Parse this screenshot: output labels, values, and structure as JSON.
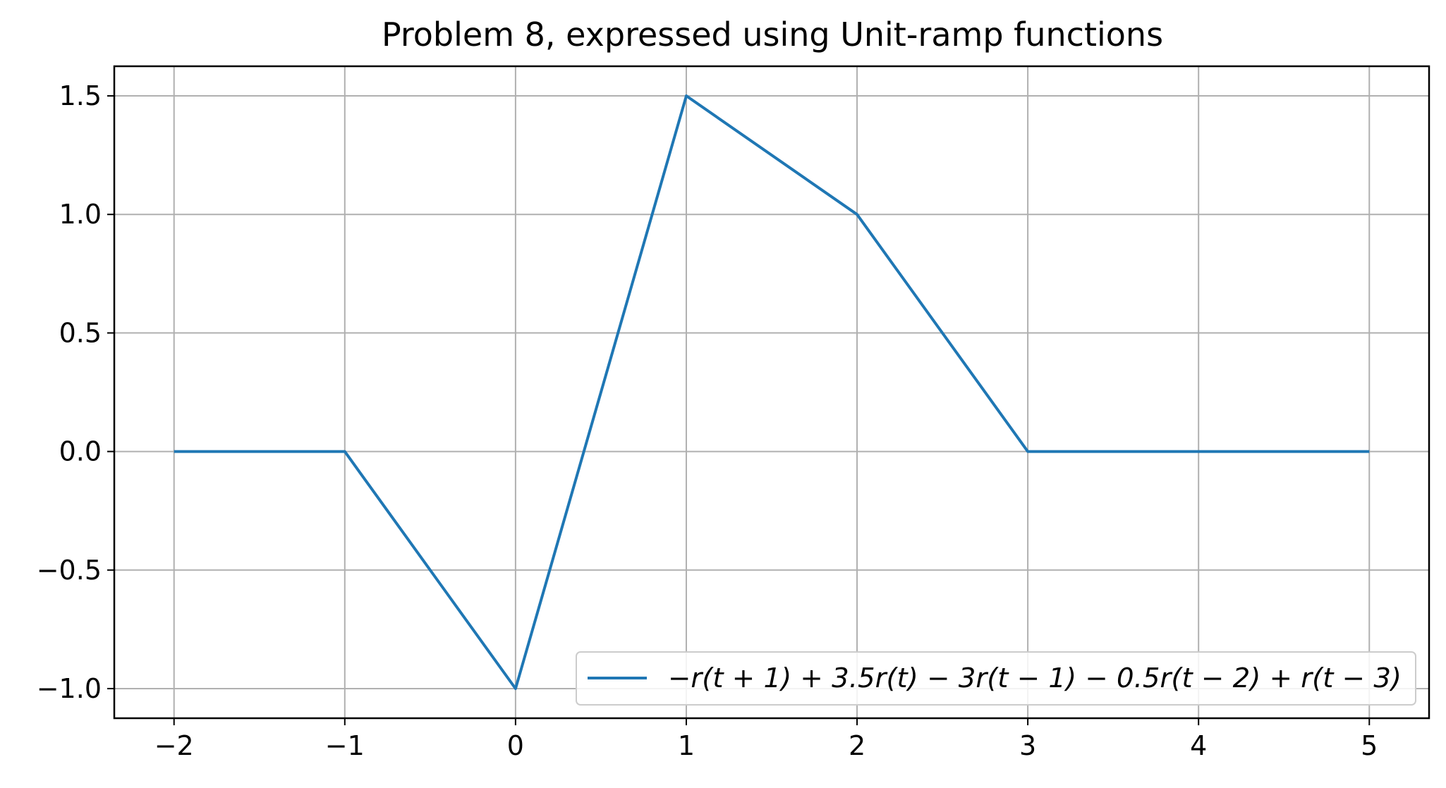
{
  "chart_data": {
    "type": "line",
    "title": "Problem 8, expressed using Unit-ramp functions",
    "xlabel": "",
    "ylabel": "",
    "xlim": [
      -2.35,
      5.35
    ],
    "ylim": [
      -1.125,
      1.625
    ],
    "grid": true,
    "legend_position": "lower-right",
    "xticks": [
      -2,
      -1,
      0,
      1,
      2,
      3,
      4,
      5
    ],
    "xtick_labels": [
      "−2",
      "−1",
      "0",
      "1",
      "2",
      "3",
      "4",
      "5"
    ],
    "yticks": [
      -1.0,
      -0.5,
      0.0,
      0.5,
      1.0,
      1.5
    ],
    "ytick_labels": [
      "−1.0",
      "−0.5",
      "0.0",
      "0.5",
      "1.0",
      "1.5"
    ],
    "series": [
      {
        "name": "−r(t + 1) + 3.5r(t) − 3r(t − 1) − 0.5r(t − 2) + r(t − 3)",
        "color": "#1f77b4",
        "x": [
          -2,
          -1,
          0,
          1,
          2,
          3,
          4,
          5
        ],
        "y": [
          0,
          0,
          -1,
          1.5,
          1,
          0,
          0,
          0
        ]
      }
    ]
  }
}
